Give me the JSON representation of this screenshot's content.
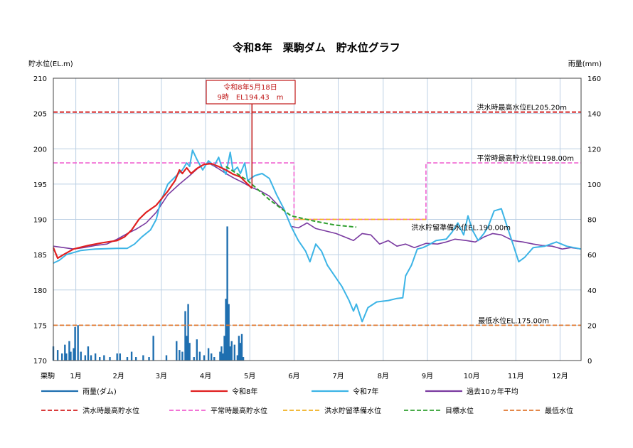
{
  "chart_data": {
    "type": "line",
    "title": "令和8年　栗駒ダム　貯水位グラフ",
    "left_axis": {
      "label": "貯水位(EL.m)",
      "range": [
        170,
        210
      ],
      "ticks": [
        "170",
        "175",
        "180",
        "185",
        "190",
        "195",
        "200",
        "205",
        "210"
      ]
    },
    "right_axis": {
      "label": "雨量(mm)",
      "range": [
        0,
        160
      ],
      "ticks": [
        "0",
        "20",
        "40",
        "60",
        "80",
        "100",
        "120",
        "140",
        "160"
      ]
    },
    "x_axis": {
      "corner_label": "栗駒",
      "months": [
        "1月",
        "2月",
        "3月",
        "4月",
        "5月",
        "6月",
        "7月",
        "8月",
        "9月",
        "10月",
        "11月",
        "12月"
      ],
      "range_day": [
        1,
        365
      ]
    },
    "grid": true,
    "colors": {
      "rain": "#1f6fb0",
      "r8": "#e02020",
      "r7": "#3cb4e6",
      "avg10": "#7a3aa0",
      "flood_max": "#d42020",
      "normal_max": "#f060d0",
      "flood_reserve": "#f0b020",
      "target": "#30a030",
      "min": "#e07830",
      "callout": "#c01818",
      "grid": "#bcd0e4"
    },
    "callout": {
      "line1": "令和8年5月18日",
      "line2": "9時　EL194.43　m",
      "day": 138,
      "value": 194.43
    },
    "reference_lines": {
      "flood_max": {
        "text": "洪水時最高水位EL205.20m",
        "value": 205.2
      },
      "normal_max": {
        "text": "平常時最高貯水位EL198.00m",
        "value": 198.0
      },
      "flood_reserve": {
        "text": "洪水貯留準備水位EL.190.00m",
        "value": 190.0
      },
      "min": {
        "text": "最低水位EL.175.00m",
        "value": 175.0
      }
    },
    "normal_max_segments": [
      [
        1,
        198.0
      ],
      [
        167,
        198.0
      ],
      [
        167,
        190.0
      ],
      [
        258,
        190.0
      ],
      [
        258,
        198.0
      ],
      [
        365,
        198.0
      ]
    ],
    "flood_reserve_segment": [
      [
        167,
        190.0
      ],
      [
        258,
        190.0
      ]
    ],
    "series": [
      {
        "name": "令和8年",
        "key": "r8",
        "points": [
          [
            1,
            186.0
          ],
          [
            4,
            184.5
          ],
          [
            8,
            185.0
          ],
          [
            15,
            185.8
          ],
          [
            25,
            186.3
          ],
          [
            35,
            186.7
          ],
          [
            45,
            187.0
          ],
          [
            50,
            187.5
          ],
          [
            55,
            188.5
          ],
          [
            60,
            190.0
          ],
          [
            65,
            191.0
          ],
          [
            72,
            192.0
          ],
          [
            80,
            194.0
          ],
          [
            85,
            195.5
          ],
          [
            88,
            197.0
          ],
          [
            90,
            196.5
          ],
          [
            93,
            197.3
          ],
          [
            96,
            196.5
          ],
          [
            100,
            197.2
          ],
          [
            105,
            197.8
          ],
          [
            110,
            197.9
          ],
          [
            115,
            197.5
          ],
          [
            120,
            197.0
          ],
          [
            125,
            196.4
          ],
          [
            130,
            196.0
          ],
          [
            135,
            195.0
          ],
          [
            138,
            194.4
          ]
        ]
      },
      {
        "name": "令和7年",
        "key": "r7",
        "points": [
          [
            1,
            183.8
          ],
          [
            5,
            184.2
          ],
          [
            10,
            185.0
          ],
          [
            20,
            185.6
          ],
          [
            30,
            185.8
          ],
          [
            45,
            185.9
          ],
          [
            52,
            185.9
          ],
          [
            57,
            186.5
          ],
          [
            62,
            187.5
          ],
          [
            68,
            188.5
          ],
          [
            72,
            190.0
          ],
          [
            75,
            192.5
          ],
          [
            80,
            195.0
          ],
          [
            85,
            196.0
          ],
          [
            90,
            197.0
          ],
          [
            93,
            198.0
          ],
          [
            95,
            197.5
          ],
          [
            97,
            199.8
          ],
          [
            100,
            198.5
          ],
          [
            104,
            197.0
          ],
          [
            108,
            198.3
          ],
          [
            112,
            197.6
          ],
          [
            115,
            198.8
          ],
          [
            117,
            197.5
          ],
          [
            120,
            196.4
          ],
          [
            123,
            199.5
          ],
          [
            125,
            196.8
          ],
          [
            128,
            197.4
          ],
          [
            130,
            196.5
          ],
          [
            133,
            198.0
          ],
          [
            135,
            195.5
          ],
          [
            140,
            196.2
          ],
          [
            145,
            196.5
          ],
          [
            150,
            195.8
          ],
          [
            155,
            193.5
          ],
          [
            160,
            191.5
          ],
          [
            165,
            189.0
          ],
          [
            170,
            187.0
          ],
          [
            175,
            185.5
          ],
          [
            178,
            184.0
          ],
          [
            182,
            186.5
          ],
          [
            186,
            185.5
          ],
          [
            190,
            183.5
          ],
          [
            195,
            182.0
          ],
          [
            200,
            180.5
          ],
          [
            205,
            178.5
          ],
          [
            208,
            177.0
          ],
          [
            210,
            178.0
          ],
          [
            214,
            175.5
          ],
          [
            218,
            177.5
          ],
          [
            224,
            178.3
          ],
          [
            232,
            178.5
          ],
          [
            238,
            178.8
          ],
          [
            242,
            178.9
          ],
          [
            244,
            182.0
          ],
          [
            248,
            183.5
          ],
          [
            252,
            185.8
          ],
          [
            256,
            186.0
          ],
          [
            260,
            186.4
          ],
          [
            265,
            187.0
          ],
          [
            272,
            187.2
          ],
          [
            276,
            188.2
          ],
          [
            280,
            189.5
          ],
          [
            284,
            187.8
          ],
          [
            287,
            190.5
          ],
          [
            290,
            188.5
          ],
          [
            294,
            187.0
          ],
          [
            298,
            188.0
          ],
          [
            301,
            189.0
          ],
          [
            305,
            191.2
          ],
          [
            310,
            191.5
          ],
          [
            314,
            189.0
          ],
          [
            318,
            186.5
          ],
          [
            322,
            184.0
          ],
          [
            326,
            184.6
          ],
          [
            332,
            186.0
          ],
          [
            340,
            186.2
          ],
          [
            348,
            186.8
          ],
          [
            355,
            186.2
          ],
          [
            360,
            186.0
          ],
          [
            365,
            185.8
          ]
        ]
      },
      {
        "name": "過去10ヵ年平均",
        "key": "avg10",
        "points": [
          [
            1,
            186.2
          ],
          [
            8,
            186.0
          ],
          [
            15,
            185.8
          ],
          [
            22,
            186.0
          ],
          [
            30,
            186.3
          ],
          [
            38,
            186.5
          ],
          [
            45,
            187.2
          ],
          [
            52,
            188.0
          ],
          [
            58,
            188.6
          ],
          [
            65,
            189.5
          ],
          [
            72,
            191.0
          ],
          [
            80,
            193.5
          ],
          [
            88,
            195.0
          ],
          [
            95,
            196.2
          ],
          [
            102,
            197.5
          ],
          [
            108,
            198.0
          ],
          [
            114,
            197.3
          ],
          [
            120,
            196.5
          ],
          [
            126,
            195.8
          ],
          [
            132,
            195.2
          ],
          [
            138,
            194.5
          ],
          [
            144,
            194.0
          ],
          [
            150,
            193.3
          ],
          [
            156,
            192.0
          ],
          [
            160,
            191.4
          ],
          [
            165,
            189.0
          ],
          [
            170,
            188.8
          ],
          [
            176,
            189.5
          ],
          [
            182,
            188.7
          ],
          [
            190,
            188.3
          ],
          [
            196,
            188.0
          ],
          [
            202,
            187.5
          ],
          [
            208,
            187.0
          ],
          [
            214,
            188.0
          ],
          [
            220,
            187.8
          ],
          [
            226,
            186.5
          ],
          [
            232,
            187.0
          ],
          [
            238,
            186.2
          ],
          [
            244,
            186.5
          ],
          [
            250,
            186.0
          ],
          [
            258,
            186.6
          ],
          [
            266,
            186.5
          ],
          [
            272,
            186.8
          ],
          [
            278,
            187.2
          ],
          [
            286,
            187.0
          ],
          [
            292,
            186.8
          ],
          [
            298,
            187.5
          ],
          [
            304,
            188.0
          ],
          [
            310,
            187.8
          ],
          [
            318,
            187.0
          ],
          [
            325,
            186.8
          ],
          [
            332,
            186.5
          ],
          [
            338,
            186.3
          ],
          [
            345,
            186.2
          ],
          [
            352,
            185.8
          ],
          [
            358,
            186.0
          ],
          [
            365,
            185.8
          ]
        ]
      },
      {
        "name": "目標水位",
        "key": "target",
        "points": [
          [
            120,
            197.5
          ],
          [
            135,
            195.5
          ],
          [
            150,
            192.8
          ],
          [
            165,
            190.5
          ],
          [
            180,
            189.8
          ],
          [
            195,
            189.2
          ],
          [
            210,
            188.9
          ]
        ]
      }
    ],
    "rain_mm": [
      [
        1,
        8
      ],
      [
        4,
        6
      ],
      [
        7,
        4
      ],
      [
        9,
        9
      ],
      [
        10,
        4
      ],
      [
        12,
        11
      ],
      [
        13,
        5
      ],
      [
        15,
        7
      ],
      [
        16,
        19
      ],
      [
        18,
        20
      ],
      [
        20,
        5
      ],
      [
        23,
        3
      ],
      [
        25,
        8
      ],
      [
        27,
        3
      ],
      [
        30,
        4
      ],
      [
        33,
        2
      ],
      [
        36,
        3
      ],
      [
        40,
        2
      ],
      [
        45,
        4
      ],
      [
        47,
        4
      ],
      [
        52,
        2
      ],
      [
        55,
        5
      ],
      [
        58,
        2
      ],
      [
        63,
        3
      ],
      [
        67,
        2
      ],
      [
        70,
        14
      ],
      [
        79,
        3
      ],
      [
        86,
        11
      ],
      [
        88,
        6
      ],
      [
        90,
        5
      ],
      [
        92,
        28
      ],
      [
        93,
        14
      ],
      [
        94,
        32
      ],
      [
        95,
        10
      ],
      [
        98,
        2
      ],
      [
        100,
        12
      ],
      [
        102,
        5
      ],
      [
        105,
        3
      ],
      [
        108,
        7
      ],
      [
        110,
        4
      ],
      [
        112,
        2
      ],
      [
        116,
        5
      ],
      [
        117,
        8
      ],
      [
        118,
        4
      ],
      [
        119,
        14
      ],
      [
        120,
        35
      ],
      [
        121,
        76
      ],
      [
        122,
        32
      ],
      [
        123,
        8
      ],
      [
        124,
        11
      ],
      [
        126,
        9
      ],
      [
        128,
        3
      ],
      [
        129,
        14
      ],
      [
        130,
        10
      ],
      [
        131,
        15
      ],
      [
        132,
        2
      ]
    ],
    "legend": [
      {
        "text": "雨量(ダム)",
        "key": "rain",
        "style": "solid"
      },
      {
        "text": "令和8年",
        "key": "r8",
        "style": "solid"
      },
      {
        "text": "令和7年",
        "key": "r7",
        "style": "solid"
      },
      {
        "text": "過去10ヵ年平均",
        "key": "avg10",
        "style": "solid"
      },
      {
        "text": "洪水時最高貯水位",
        "key": "flood_max",
        "style": "dashed"
      },
      {
        "text": "平常時最高貯水位",
        "key": "normal_max",
        "style": "dashed"
      },
      {
        "text": "洪水貯留準備水位",
        "key": "flood_reserve",
        "style": "dashed"
      },
      {
        "text": "目標水位",
        "key": "target",
        "style": "dashed"
      },
      {
        "text": "最低水位",
        "key": "min",
        "style": "dashed"
      }
    ]
  }
}
